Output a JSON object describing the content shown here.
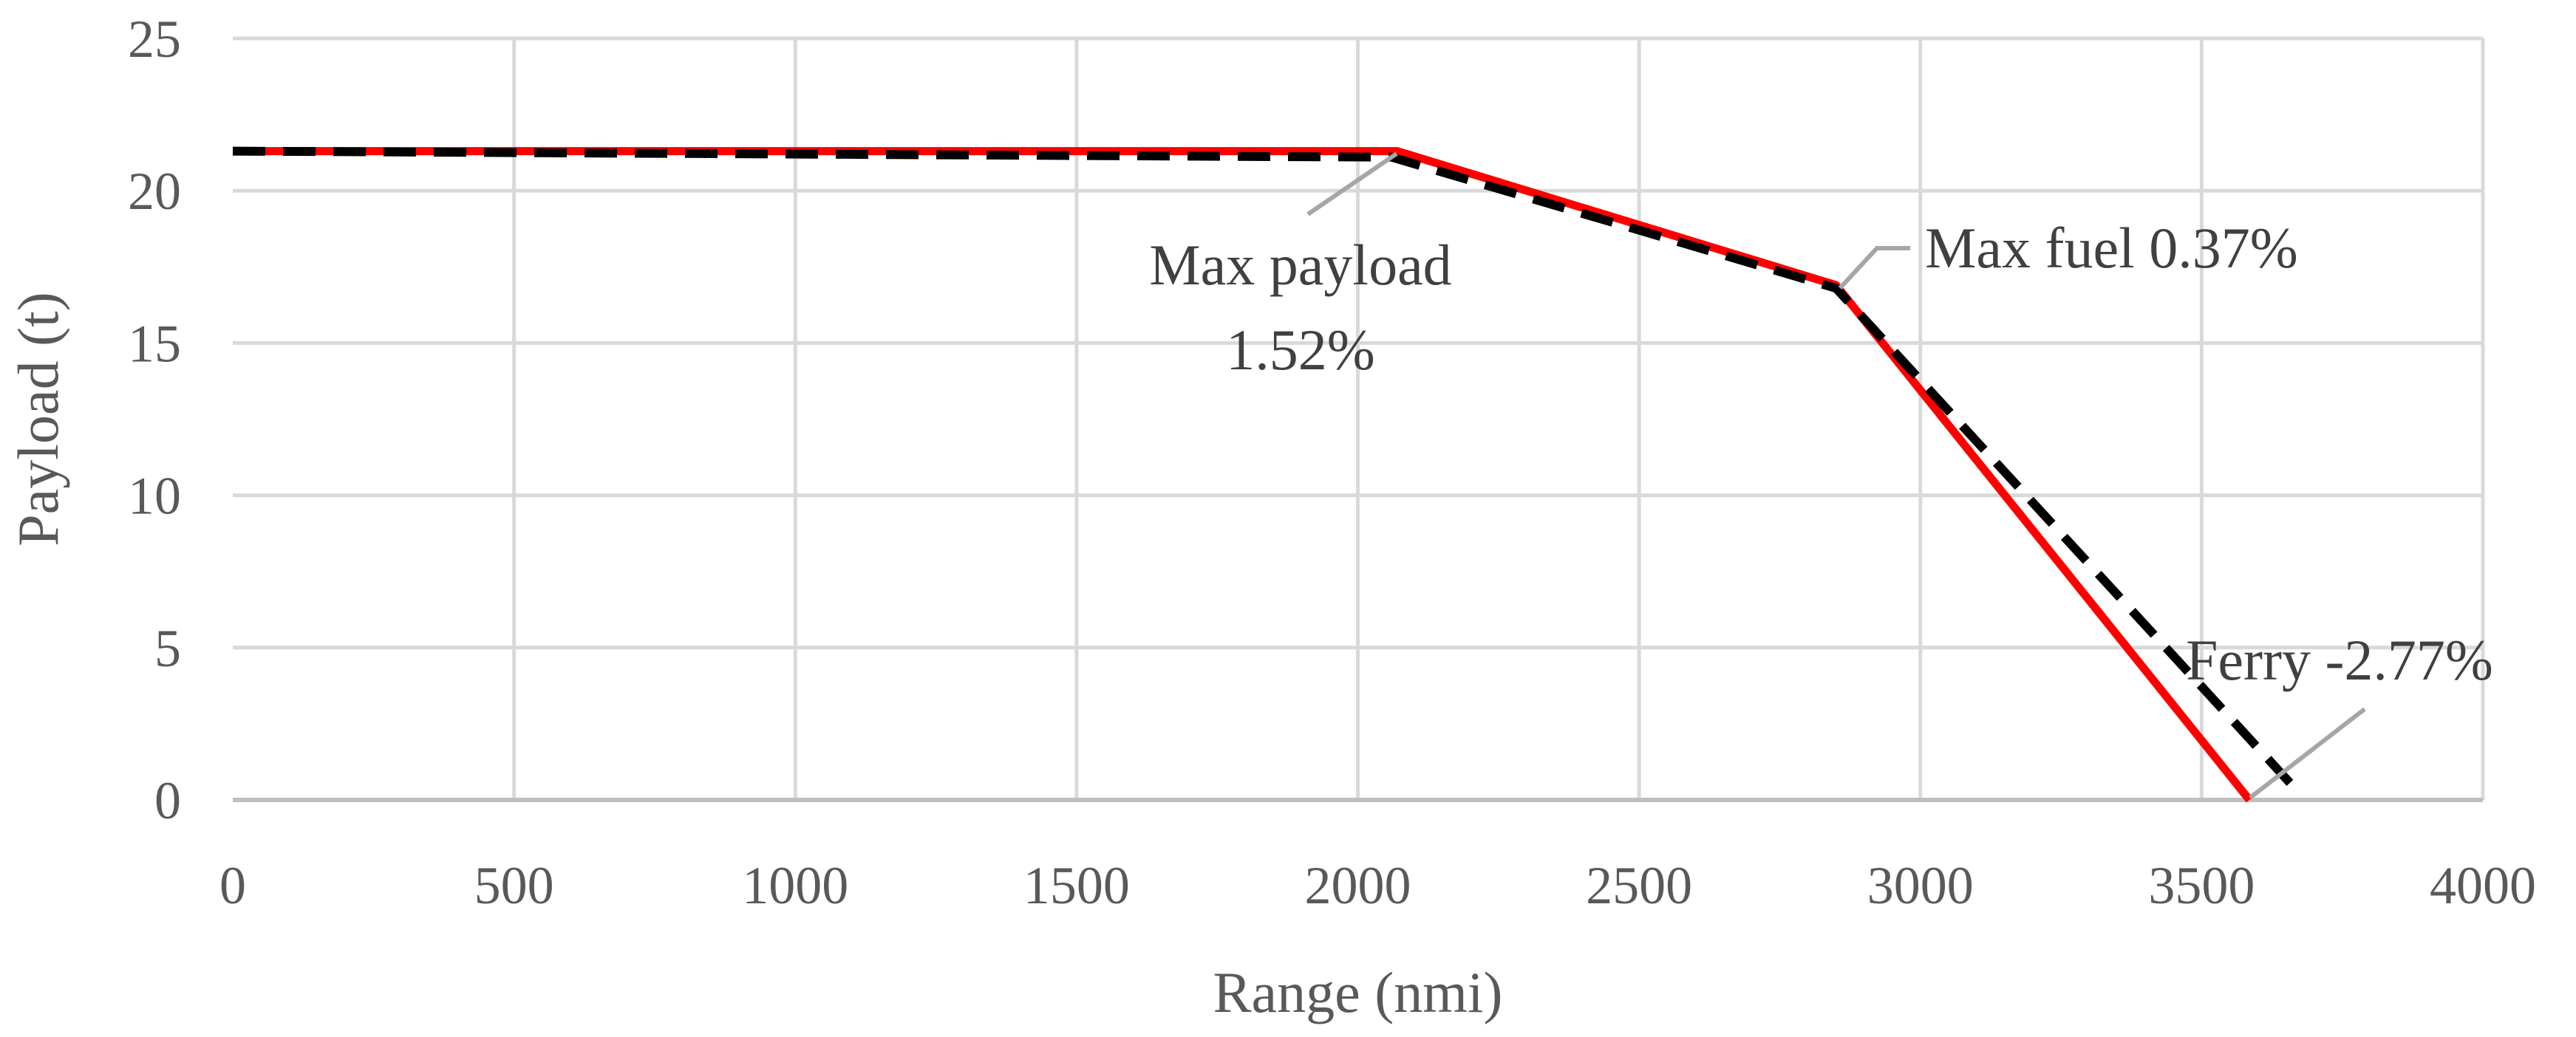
{
  "chart_data": {
    "type": "line",
    "xlabel": "Range (nmi)",
    "ylabel": "Payload (t)",
    "xlim": [
      0,
      4000
    ],
    "ylim": [
      0,
      25
    ],
    "x_ticks": [
      "0",
      "500",
      "1000",
      "1500",
      "2000",
      "2500",
      "3000",
      "3500",
      "4000"
    ],
    "y_ticks": [
      "0",
      "5",
      "10",
      "15",
      "20",
      "25"
    ],
    "grid": true,
    "legend": "none",
    "series": [
      {
        "style": "solid",
        "color": "#ff0000",
        "points": [
          [
            0,
            21.3
          ],
          [
            2070,
            21.3
          ],
          [
            2850,
            16.9
          ],
          [
            3585,
            0
          ]
        ]
      },
      {
        "style": "dashed",
        "color": "#000000",
        "points": [
          [
            0,
            21.3
          ],
          [
            2060,
            21.1
          ],
          [
            2850,
            16.8
          ],
          [
            3660,
            0.5
          ]
        ]
      }
    ],
    "annotations": [
      {
        "lines": [
          "Max payload",
          "1.52%"
        ],
        "point": [
          2070,
          21.3
        ]
      },
      {
        "lines": [
          "Max fuel 0.37%"
        ],
        "point": [
          2850,
          16.9
        ]
      },
      {
        "lines": [
          "Ferry -2.77%"
        ],
        "point": [
          3585,
          0
        ]
      }
    ]
  }
}
